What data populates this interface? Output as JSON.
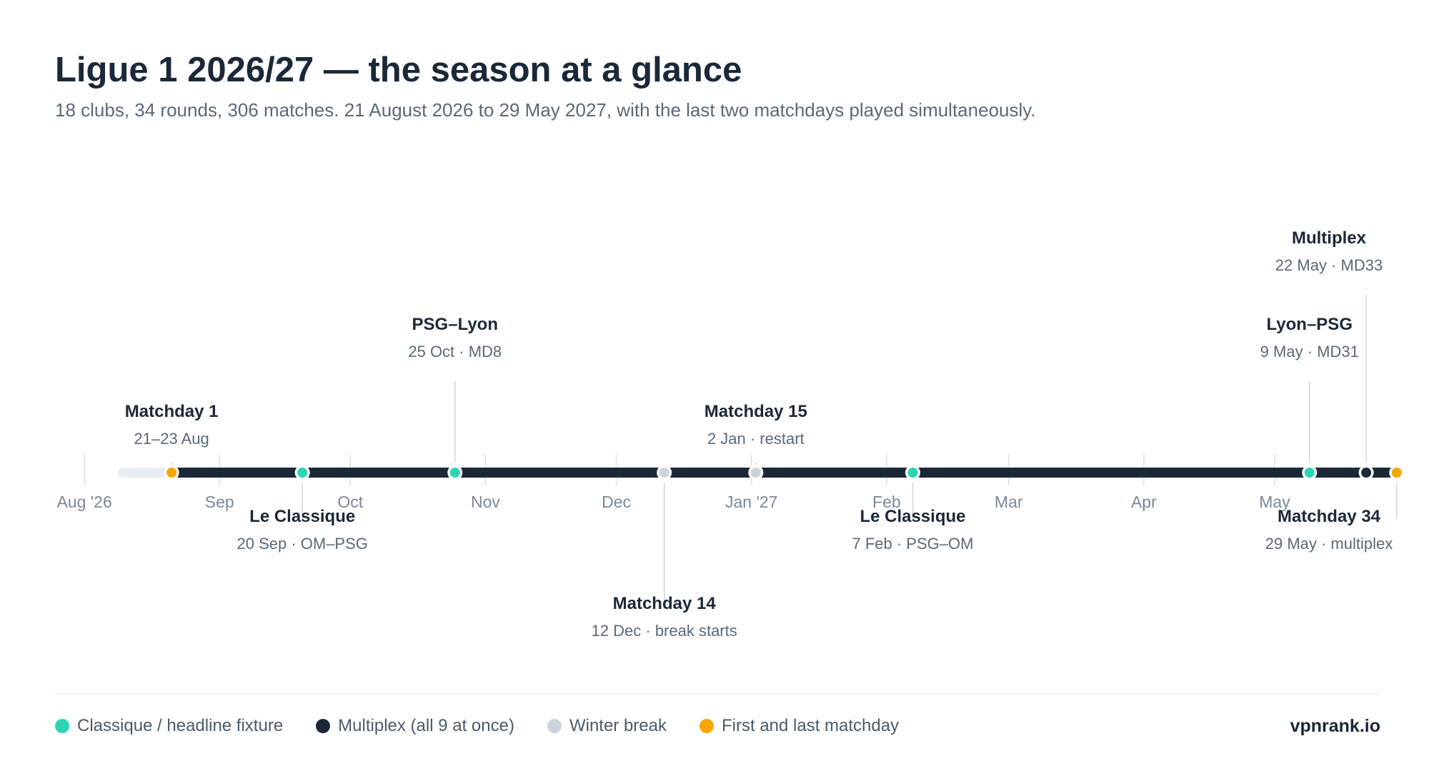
{
  "header": {
    "title": "Ligue 1 2026/27 — the season at a glance",
    "subtitle": "18 clubs, 34 rounds, 306 matches. 21 August 2026 to 29 May 2027, with the last two matchdays played simultaneously."
  },
  "colors": {
    "track": "#1b2838",
    "track_pre": "#e8edf2",
    "classique": "#2dd4b4",
    "multiplex": "#1b2838",
    "winter": "#cdd3dc",
    "first_last": "#f5a600",
    "stem": "#cfd5dd",
    "tick_label": "#7a8898",
    "event_title": "#1b2838",
    "event_sub": "#5a6878"
  },
  "timeline": {
    "start_date": "2026-07-31",
    "end_date": "2027-05-31",
    "track_start": "2026-08-21",
    "months": [
      {
        "label": "Aug '26",
        "date": "2026-08-01"
      },
      {
        "label": "Sep",
        "date": "2026-09-01"
      },
      {
        "label": "Oct",
        "date": "2026-10-01"
      },
      {
        "label": "Nov",
        "date": "2026-11-01"
      },
      {
        "label": "Dec",
        "date": "2026-12-01"
      },
      {
        "label": "Jan '27",
        "date": "2027-01-01"
      },
      {
        "label": "Feb",
        "date": "2027-02-01"
      },
      {
        "label": "Mar",
        "date": "2027-03-01"
      },
      {
        "label": "Apr",
        "date": "2027-04-01"
      },
      {
        "label": "May",
        "date": "2027-05-01"
      }
    ],
    "events": [
      {
        "id": "matchday-1",
        "title": "Matchday 1",
        "sub": "21–23 Aug",
        "date": "2026-08-21",
        "category": "first_last",
        "side": "above",
        "level": 1
      },
      {
        "id": "le-classique-sep",
        "title": "Le Classique",
        "sub": "20 Sep · OM–PSG",
        "date": "2026-09-20",
        "category": "classique",
        "side": "below",
        "level": 1
      },
      {
        "id": "psg-lyon",
        "title": "PSG–Lyon",
        "sub": "25 Oct · MD8",
        "date": "2026-10-25",
        "category": "classique",
        "side": "above",
        "level": 2
      },
      {
        "id": "matchday-14",
        "title": "Matchday 14",
        "sub": "12 Dec · break starts",
        "date": "2026-12-12",
        "category": "winter",
        "side": "below",
        "level": 2
      },
      {
        "id": "matchday-15",
        "title": "Matchday 15",
        "sub": "2 Jan · restart",
        "date": "2027-01-02",
        "category": "winter",
        "side": "above",
        "level": 1
      },
      {
        "id": "le-classique-feb",
        "title": "Le Classique",
        "sub": "7 Feb · PSG–OM",
        "date": "2027-02-07",
        "category": "classique",
        "side": "below",
        "level": 1
      },
      {
        "id": "lyon-psg",
        "title": "Lyon–PSG",
        "sub": "9 May · MD31",
        "date": "2027-05-09",
        "category": "classique",
        "side": "above",
        "level": 2
      },
      {
        "id": "multiplex",
        "title": "Multiplex",
        "sub": "22 May · MD33",
        "date": "2027-05-22",
        "category": "multiplex",
        "side": "above",
        "level": 3
      },
      {
        "id": "matchday-34",
        "title": "Matchday 34",
        "sub": "29 May · multiplex",
        "date": "2027-05-29",
        "category": "first_last",
        "side": "below",
        "level": 1
      }
    ]
  },
  "legend": [
    {
      "key": "classique",
      "label": "Classique / headline fixture",
      "color": "#2dd4b4"
    },
    {
      "key": "multiplex",
      "label": "Multiplex (all 9 at once)",
      "color": "#1b2838"
    },
    {
      "key": "winter",
      "label": "Winter break",
      "color": "#cdd3dc"
    },
    {
      "key": "first_last",
      "label": "First and last matchday",
      "color": "#f5a600"
    }
  ],
  "footer": {
    "brand": "vpnrank.io"
  }
}
